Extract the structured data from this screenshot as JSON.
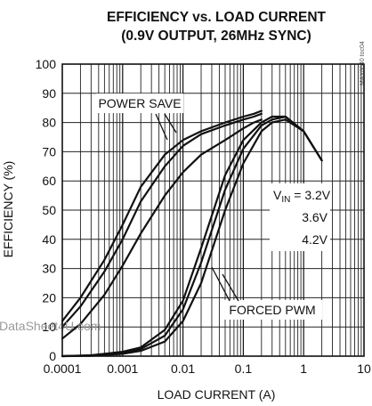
{
  "chart_data": {
    "type": "line",
    "title": "EFFICIENCY vs. LOAD CURRENT",
    "subtitle": "(0.9V OUTPUT, 26MHz SYNC)",
    "xlabel": "LOAD CURRENT (A)",
    "ylabel": "EFFICIENCY (%)",
    "x_scale": "log",
    "xlim": [
      0.0001,
      10
    ],
    "ylim": [
      0,
      100
    ],
    "x_ticks": [
      "0.0001",
      "0.001",
      "0.01",
      "0.1",
      "1",
      "10"
    ],
    "y_ticks": [
      "0",
      "10",
      "20",
      "30",
      "40",
      "50",
      "60",
      "70",
      "80",
      "90",
      "100"
    ],
    "grid": true,
    "figure_id": "MAX8640 toc04",
    "watermark": "DataSheet4U.com",
    "annotations": {
      "power_save": "POWER SAVE",
      "forced_pwm": "FORCED PWM",
      "vin_prefix": "V",
      "vin_sub": "IN",
      "vin_eq": " = ",
      "vin_1": "3.2V",
      "vin_2": "3.6V",
      "vin_3": "4.2V"
    },
    "series": [
      {
        "group": "power-save",
        "vin": "3.2V",
        "x": [
          0.0001,
          0.0002,
          0.0005,
          0.001,
          0.002,
          0.005,
          0.01,
          0.02,
          0.05,
          0.1,
          0.15,
          0.2
        ],
        "y": [
          12,
          20,
          33,
          45,
          58,
          69,
          74,
          77,
          80,
          82,
          83,
          84
        ]
      },
      {
        "group": "power-save",
        "vin": "3.6V",
        "x": [
          0.0001,
          0.0002,
          0.0005,
          0.001,
          0.002,
          0.005,
          0.01,
          0.02,
          0.05,
          0.1,
          0.15,
          0.2
        ],
        "y": [
          10,
          17,
          29,
          40,
          53,
          65,
          72,
          76,
          79,
          81,
          82,
          83
        ]
      },
      {
        "group": "power-save",
        "vin": "4.2V",
        "x": [
          0.0001,
          0.0002,
          0.0005,
          0.001,
          0.002,
          0.005,
          0.01,
          0.02,
          0.05,
          0.1,
          0.15,
          0.2
        ],
        "y": [
          6,
          11,
          21,
          31,
          42,
          55,
          63,
          69,
          74,
          78,
          80,
          81
        ]
      },
      {
        "group": "forced-pwm",
        "vin": "3.2V",
        "x": [
          0.0001,
          0.0003,
          0.001,
          0.002,
          0.005,
          0.01,
          0.02,
          0.05,
          0.1,
          0.2,
          0.3,
          0.5,
          1,
          2
        ],
        "y": [
          0,
          0.3,
          1.5,
          3,
          9,
          19,
          37,
          62,
          74,
          80,
          82,
          82,
          77,
          67
        ]
      },
      {
        "group": "forced-pwm",
        "vin": "3.6V",
        "x": [
          0.0001,
          0.0003,
          0.001,
          0.002,
          0.005,
          0.01,
          0.02,
          0.05,
          0.1,
          0.2,
          0.3,
          0.5,
          1,
          2
        ],
        "y": [
          0,
          0.2,
          1.2,
          2.4,
          7,
          16,
          32,
          57,
          71,
          79,
          81,
          82,
          77,
          67
        ]
      },
      {
        "group": "forced-pwm",
        "vin": "4.2V",
        "x": [
          0.0001,
          0.0003,
          0.001,
          0.002,
          0.005,
          0.01,
          0.02,
          0.05,
          0.1,
          0.2,
          0.3,
          0.5,
          1,
          2
        ],
        "y": [
          0,
          0.1,
          0.8,
          1.8,
          5,
          12,
          25,
          50,
          66,
          77,
          80,
          81,
          77,
          67
        ]
      }
    ]
  }
}
